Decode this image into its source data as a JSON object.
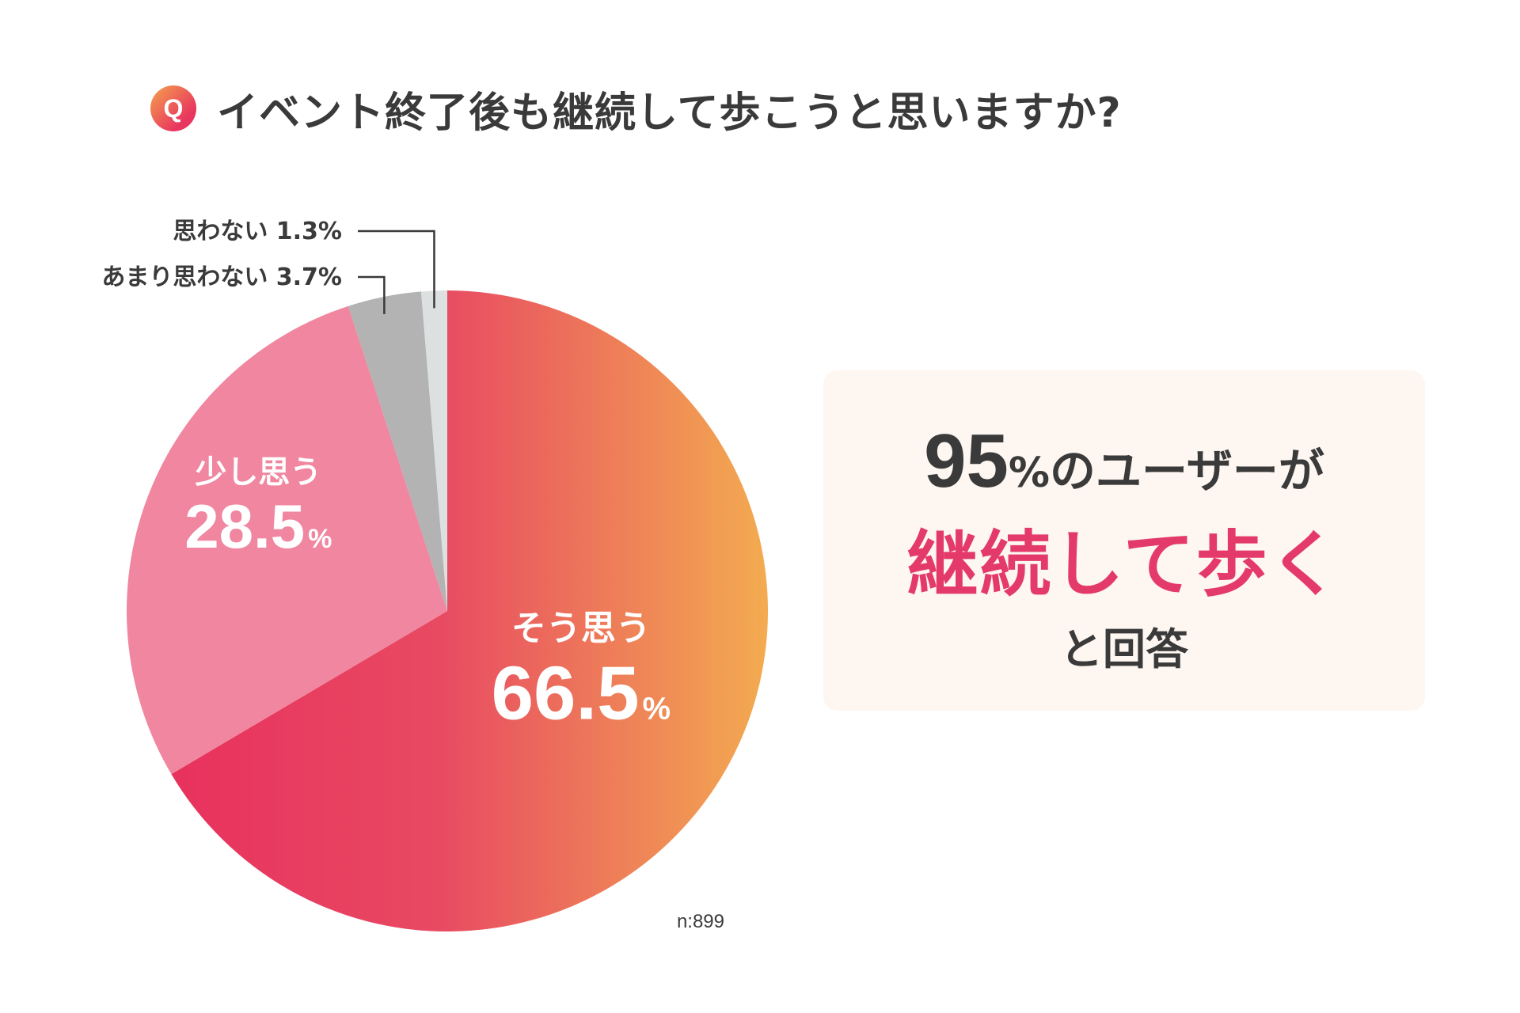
{
  "question_badge": "Q",
  "title": "イベント終了後も継続して歩こうと思いますか?",
  "chart_data": {
    "type": "pie",
    "title": "イベント終了後も継続して歩こうと思いますか?",
    "slices": [
      {
        "label": "そう思う",
        "value": 66.5,
        "display": "66.5",
        "unit": "%",
        "color_start": "#e8315e",
        "color_end": "#f3ab50",
        "text_color": "#ffffff"
      },
      {
        "label": "少し思う",
        "value": 28.5,
        "display": "28.5",
        "unit": "%",
        "color": "#f0869f",
        "text_color": "#ffffff"
      },
      {
        "label": "あまり思わない",
        "value": 3.7,
        "display": "3.7",
        "unit": "%",
        "color": "#b3b3b3"
      },
      {
        "label": "思わない",
        "value": 1.3,
        "display": "1.3",
        "unit": "%",
        "color": "#dde0e1"
      }
    ],
    "callout_labels": [
      "思わない 1.3%",
      "あまり思わない 3.7%"
    ],
    "sample_size": "n:899"
  },
  "summary": {
    "number": "95",
    "percent": "%",
    "line1_suffix": "のユーザーが",
    "highlight": "継続して歩く",
    "line3": "と回答"
  },
  "colors": {
    "text": "#3a3a3a",
    "accent": "#e43a69",
    "callout_bg": "#fdf6f1",
    "leader_line": "#3a3a3a"
  }
}
